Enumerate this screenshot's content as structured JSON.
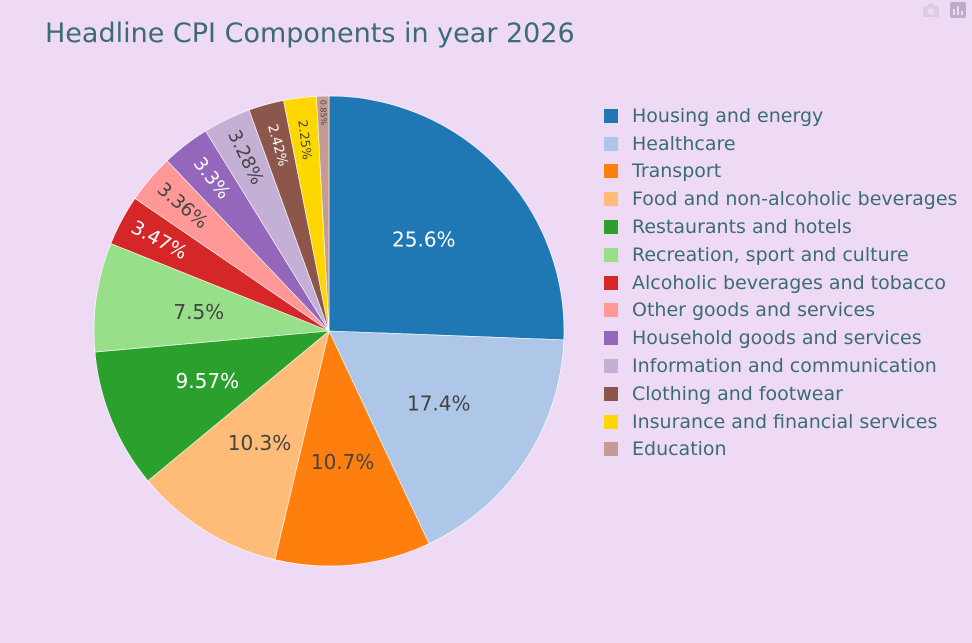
{
  "modebar": {
    "camera_icon": "camera-icon",
    "plotly_icon": "plotly-logo-icon"
  },
  "chart_data": {
    "type": "pie",
    "title": "Headline CPI Components in year 2026",
    "direction": "clockwise",
    "legend_position": "right",
    "slices": [
      {
        "label": "Housing and energy",
        "value": 25.6,
        "text": "25.6%",
        "color": "#1f77b4",
        "text_color": "#ffffff"
      },
      {
        "label": "Healthcare",
        "value": 17.4,
        "text": "17.4%",
        "color": "#aec7e8",
        "text_color": "#444444"
      },
      {
        "label": "Transport",
        "value": 10.7,
        "text": "10.7%",
        "color": "#ff7f0e",
        "text_color": "#444444"
      },
      {
        "label": "Food and non-alcoholic beverages",
        "value": 10.3,
        "text": "10.3%",
        "color": "#ffbb78",
        "text_color": "#444444"
      },
      {
        "label": "Restaurants and hotels",
        "value": 9.57,
        "text": "9.57%",
        "color": "#2ca02c",
        "text_color": "#ffffff"
      },
      {
        "label": "Recreation, sport and culture",
        "value": 7.5,
        "text": "7.5%",
        "color": "#98df8a",
        "text_color": "#444444"
      },
      {
        "label": "Alcoholic beverages and tobacco",
        "value": 3.47,
        "text": "3.47%",
        "color": "#d62728",
        "text_color": "#ffffff"
      },
      {
        "label": "Other goods and services",
        "value": 3.36,
        "text": "3.36%",
        "color": "#ff9896",
        "text_color": "#444444"
      },
      {
        "label": "Household goods and services",
        "value": 3.3,
        "text": "3.3%",
        "color": "#9467bd",
        "text_color": "#ffffff"
      },
      {
        "label": "Information and communication",
        "value": 3.28,
        "text": "3.28%",
        "color": "#c5b0d5",
        "text_color": "#444444"
      },
      {
        "label": "Clothing and footwear",
        "value": 2.42,
        "text": "2.42%",
        "color": "#8c564b",
        "text_color": "#ffffff"
      },
      {
        "label": "Insurance and financial services",
        "value": 2.25,
        "text": "2.25%",
        "color": "#ffd700",
        "text_color": "#444444"
      },
      {
        "label": "Education",
        "value": 0.85,
        "text": "0.85%",
        "color": "#c49c94",
        "text_color": "#444444"
      }
    ]
  }
}
